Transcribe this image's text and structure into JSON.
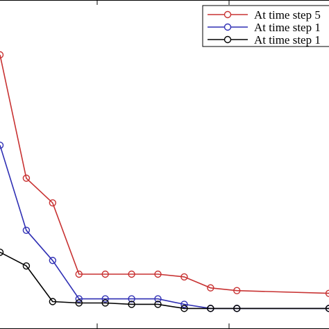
{
  "chart_data": {
    "type": "line",
    "title": "",
    "xlabel": "",
    "ylabel": "",
    "xlim": [
      -0.05,
      1.2
    ],
    "ylim": [
      0,
      1.2
    ],
    "grid": false,
    "legend_position": "top-right",
    "x": [
      -0.05,
      0.05,
      0.15,
      0.25,
      0.35,
      0.45,
      0.55,
      0.65,
      0.75,
      0.85,
      1.2
    ],
    "series": [
      {
        "name": "At time step 5",
        "color": "#c83232",
        "values": [
          1.0,
          0.55,
          0.46,
          0.2,
          0.2,
          0.2,
          0.2,
          0.19,
          0.15,
          0.14,
          0.13
        ]
      },
      {
        "name": "At time step 1",
        "color": "#2f2fb4",
        "values": [
          0.67,
          0.36,
          0.25,
          0.11,
          0.11,
          0.11,
          0.11,
          0.09,
          0.075,
          0.075,
          0.075
        ]
      },
      {
        "name": "At time step 1",
        "color": "#000000",
        "values": [
          0.28,
          0.23,
          0.1,
          0.095,
          0.095,
          0.09,
          0.09,
          0.075,
          0.075,
          0.075,
          0.075
        ]
      }
    ]
  }
}
